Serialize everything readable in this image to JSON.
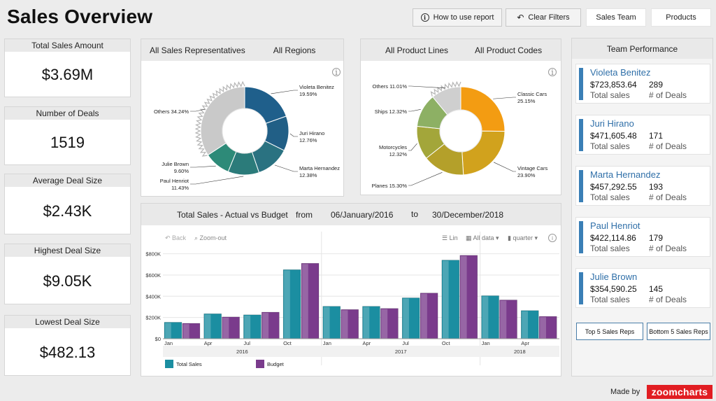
{
  "header": {
    "title": "Sales Overview",
    "how_to": "How to use report",
    "clear_filters": "Clear Filters",
    "sales_team": "Sales Team",
    "products": "Products"
  },
  "kpis": [
    {
      "label": "Total Sales Amount",
      "value": "$3.69M"
    },
    {
      "label": "Number of Deals",
      "value": "1519"
    },
    {
      "label": "Average Deal Size",
      "value": "$2.43K"
    },
    {
      "label": "Highest Deal Size",
      "value": "$9.05K"
    },
    {
      "label": "Lowest Deal Size",
      "value": "$482.13"
    }
  ],
  "reps_panel": {
    "filter1": "All Sales Representatives",
    "filter2": "All Regions"
  },
  "products_panel": {
    "filter1": "All Product Lines",
    "filter2": "All Product Codes"
  },
  "bar_panel": {
    "title": "Total Sales - Actual vs Budget",
    "from_label": "from",
    "from_date": "06/January/2016",
    "to_label": "to",
    "to_date": "30/December/2018",
    "back": "Back",
    "zoom_out": "Zoom-out",
    "lin": "Lin",
    "all_data": "All data",
    "quarter": "quarter"
  },
  "team": {
    "title": "Team Performance",
    "sales_caption": "Total sales",
    "deals_caption": "# of Deals",
    "members": [
      {
        "name": "Violeta Benitez",
        "sales": "$723,853.64",
        "deals": "289"
      },
      {
        "name": "Juri Hirano",
        "sales": "$471,605.48",
        "deals": "171"
      },
      {
        "name": "Marta Hernandez",
        "sales": "$457,292.55",
        "deals": "193"
      },
      {
        "name": "Paul Henriot",
        "sales": "$422,114.86",
        "deals": "179"
      },
      {
        "name": "Julie Brown",
        "sales": "$354,590.25",
        "deals": "145"
      }
    ],
    "top_btn": "Top 5 Sales Reps",
    "bottom_btn": "Bottom 5 Sales Reps"
  },
  "footer": {
    "made_by": "Made by",
    "brand": "zoomcharts"
  },
  "colors": {
    "actual": "#1b8ea1",
    "budget": "#7a3b8c",
    "accent": "#3a7fb6",
    "brand": "#e11d22"
  },
  "chart_data": [
    {
      "type": "pie",
      "variant": "donut",
      "title": "",
      "slices": [
        {
          "label": "Violeta Benitez",
          "value": 19.59,
          "color": "#1f5f8b"
        },
        {
          "label": "Juri Hirano",
          "value": 12.76,
          "color": "#215f86"
        },
        {
          "label": "Marta Hernandez",
          "value": 12.38,
          "color": "#2a7281"
        },
        {
          "label": "Paul Henriot",
          "value": 11.43,
          "color": "#2b7b7a"
        },
        {
          "label": "Julie Brown",
          "value": 9.6,
          "color": "#2d8a78"
        },
        {
          "label": "Others",
          "value": 34.24,
          "color": "#c9c9c9"
        }
      ]
    },
    {
      "type": "pie",
      "variant": "donut",
      "title": "",
      "slices": [
        {
          "label": "Classic Cars",
          "value": 25.15,
          "color": "#f39c12"
        },
        {
          "label": "Vintage Cars",
          "value": 23.9,
          "color": "#d1a21d"
        },
        {
          "label": "Planes",
          "value": 15.3,
          "color": "#b4a02a"
        },
        {
          "label": "Motorcycles",
          "value": 12.32,
          "color": "#a3a63a"
        },
        {
          "label": "Ships",
          "value": 12.32,
          "color": "#8db064"
        },
        {
          "label": "Others",
          "value": 11.01,
          "color": "#cfcfcf"
        }
      ]
    },
    {
      "type": "bar",
      "title": "Total Sales - Actual vs Budget",
      "categories": [
        "Q1 2016",
        "Q2 2016",
        "Q3 2016",
        "Q4 2016",
        "Q1 2017",
        "Q2 2017",
        "Q3 2017",
        "Q4 2017",
        "Q1 2018",
        "Q2 2018"
      ],
      "tick_labels": [
        "Jan",
        "Apr",
        "Jul",
        "Oct",
        "Jan",
        "Apr",
        "Jul",
        "Oct",
        "Jan",
        "Apr"
      ],
      "years": [
        "2016",
        "2017",
        "2018"
      ],
      "series": [
        {
          "name": "Total Sales",
          "values": [
            155000,
            235000,
            225000,
            650000,
            305000,
            305000,
            385000,
            740000,
            405000,
            265000
          ]
        },
        {
          "name": "Budget",
          "values": [
            145000,
            205000,
            250000,
            710000,
            275000,
            285000,
            430000,
            785000,
            365000,
            210000
          ]
        }
      ],
      "ylim": [
        0,
        850000
      ],
      "yticks": [
        "$0",
        "$200K",
        "$400K",
        "$600K",
        "$800K"
      ],
      "grid": true,
      "legend": "bottom-left"
    }
  ]
}
